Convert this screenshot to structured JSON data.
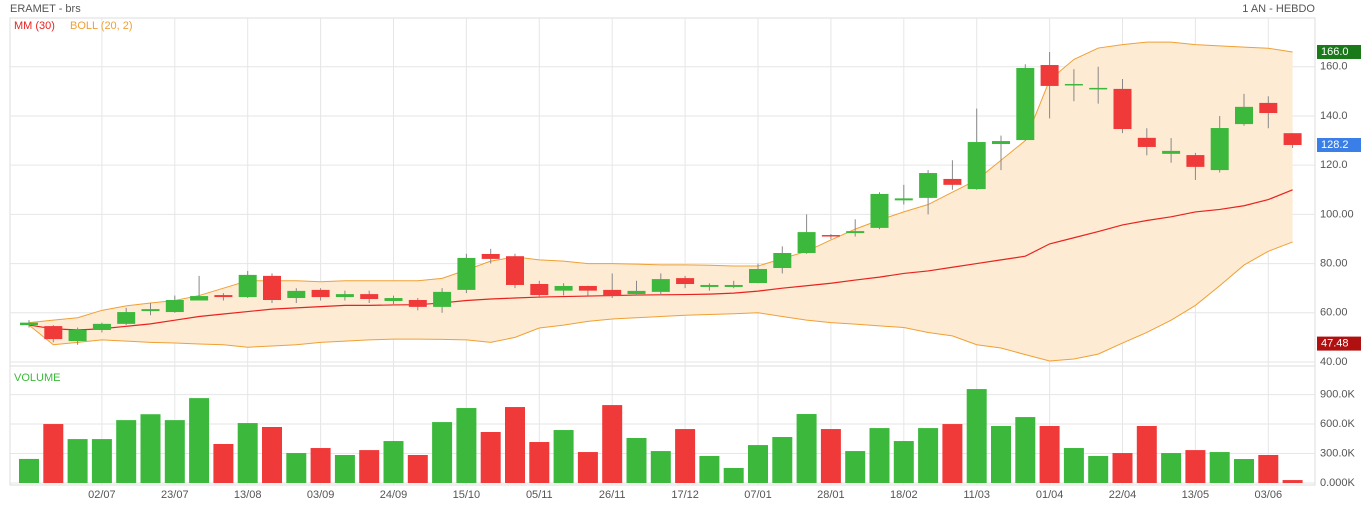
{
  "header": {
    "title": "ERAMET - brs",
    "period": "1 AN - HEBDO"
  },
  "chart_data": [
    {
      "type": "candlestick",
      "categories": [
        null,
        null,
        null,
        "02/07",
        null,
        null,
        "23/07",
        null,
        null,
        "13/08",
        null,
        null,
        "03/09",
        null,
        null,
        "24/09",
        null,
        null,
        "15/10",
        null,
        null,
        "05/11",
        null,
        null,
        "26/11",
        null,
        null,
        "17/12",
        null,
        null,
        "07/01",
        null,
        null,
        "28/01",
        null,
        null,
        "18/02",
        null,
        null,
        "11/03",
        null,
        null,
        "01/04",
        null,
        null,
        "22/04",
        null,
        null,
        "13/05",
        null,
        null,
        "03/06",
        null
      ],
      "open": [
        55,
        54.6,
        48.5,
        53,
        55.5,
        60.7,
        60.3,
        65,
        67.2,
        66.4,
        75,
        66,
        69.3,
        66.4,
        67.6,
        64.8,
        65.2,
        62.4,
        69.3,
        83.9,
        83,
        71.7,
        69,
        70.9,
        69.3,
        67.6,
        68.5,
        74.1,
        70.5,
        70.5,
        72.1,
        78.2,
        84.3,
        91.6,
        92.4,
        94.5,
        105.7,
        106.7,
        114.4,
        110.3,
        128.6,
        130.2,
        160.7,
        152.6,
        151,
        151,
        131.1,
        124.6,
        124.1,
        118,
        136.7,
        145.3,
        133
      ],
      "high": [
        57,
        55,
        54,
        56,
        62,
        64,
        67,
        75,
        68,
        77,
        76,
        70,
        70,
        69,
        69,
        67,
        66,
        70,
        84,
        86,
        84,
        73,
        72,
        71,
        76,
        73,
        76,
        75,
        72,
        73,
        80,
        87,
        100,
        92,
        98,
        109,
        112,
        118,
        122,
        143,
        132,
        161,
        166,
        159,
        160,
        155,
        135,
        131,
        125,
        140,
        149,
        148,
        133
      ],
      "low": [
        54,
        48,
        47,
        52,
        55,
        59,
        60,
        65,
        65,
        66,
        64,
        64,
        65,
        65,
        64,
        63,
        61,
        60,
        68,
        80,
        70,
        66,
        67,
        67,
        66,
        67,
        67,
        70,
        69,
        70,
        72,
        76,
        84,
        90,
        91,
        94,
        104,
        100,
        110,
        110,
        118,
        130,
        139,
        146,
        145,
        133,
        124,
        121,
        114,
        117,
        136,
        135,
        127
      ],
      "close": [
        56,
        49.3,
        53,
        55.5,
        60.3,
        61.5,
        65.2,
        66.8,
        66.4,
        75.4,
        65.2,
        68.9,
        66.4,
        67.6,
        65.6,
        66,
        62.4,
        68.5,
        82.3,
        81.9,
        71.3,
        67.2,
        70.9,
        69,
        66.8,
        68.9,
        73.7,
        71.7,
        71.3,
        71.3,
        77.8,
        84.3,
        92.8,
        91.2,
        93.2,
        108.3,
        106.5,
        116.8,
        112,
        129.4,
        129.8,
        159.5,
        152.2,
        153,
        151.4,
        134.7,
        127.4,
        125.8,
        119.3,
        135.1,
        143.7,
        141.2,
        128.2
      ],
      "up_color": "#3cb93c",
      "down_color": "#f03a3a",
      "lines": [
        {
          "name": "MM (30)",
          "color": "#e8231f",
          "values": [
            55,
            53.5,
            53,
            53.5,
            54.5,
            55.5,
            57,
            58.5,
            59.5,
            60.5,
            61.5,
            62,
            62.5,
            63,
            63,
            63.2,
            63.3,
            64,
            65,
            65.6,
            66,
            66.4,
            66.6,
            66.8,
            67,
            67.2,
            67.3,
            67.4,
            67.6,
            68,
            68.8,
            70,
            71,
            72,
            73.3,
            74.5,
            76,
            77,
            78.5,
            80,
            81.5,
            83,
            88,
            90.5,
            93,
            95.7,
            97.5,
            99,
            101,
            102,
            103.5,
            106,
            110
          ]
        }
      ],
      "band": {
        "name": "BOLL (20, 2)",
        "color": "#f0a035",
        "fill": "#fdebd3",
        "upper": [
          56,
          57,
          58,
          61,
          62.8,
          64,
          65,
          67,
          70,
          73,
          73,
          73,
          72.6,
          73,
          73,
          73,
          73,
          74,
          77.4,
          81,
          82.7,
          81.5,
          81,
          80,
          80,
          79.8,
          79.5,
          79.5,
          79.3,
          79,
          79,
          82,
          85,
          89.6,
          94,
          97.7,
          101,
          104,
          109,
          114,
          122,
          130,
          154.6,
          163,
          167.6,
          169,
          170,
          170,
          169,
          168.5,
          168,
          167.5,
          166.0
        ],
        "lower": [
          55,
          47,
          48,
          49,
          48.5,
          48,
          47.7,
          47.3,
          47,
          46,
          46.5,
          47,
          48,
          48.5,
          49,
          49.3,
          49.3,
          49.2,
          49,
          48,
          50,
          53.8,
          55,
          56.5,
          57.5,
          58,
          58.5,
          59,
          59.3,
          59.6,
          60,
          58.5,
          57,
          56,
          55.4,
          54.7,
          54,
          52,
          50.6,
          47,
          45.7,
          43,
          40.4,
          41.2,
          43.2,
          47.7,
          52,
          57,
          63,
          71,
          79.4,
          85,
          88.8
        ]
      },
      "markers": [
        {
          "value": 166.0,
          "label": "166.0",
          "color": "#1a7a1a"
        },
        {
          "value": 128.2,
          "label": "128.2",
          "color": "#3a7ee8"
        },
        {
          "value": 47.48,
          "label": "47.48",
          "color": "#b01010"
        }
      ],
      "ylim": [
        40,
        179
      ],
      "yticks": [
        {
          "value": 40,
          "label": "40.00"
        },
        {
          "value": 60,
          "label": "60.00"
        },
        {
          "value": 80,
          "label": "80.00"
        },
        {
          "value": 100,
          "label": "100.00"
        },
        {
          "value": 120,
          "label": "120.0"
        },
        {
          "value": 140,
          "label": "140.0"
        },
        {
          "value": 160,
          "label": "160.0"
        }
      ],
      "grid": true
    },
    {
      "type": "bar",
      "title": "VOLUME",
      "values": [
        245000,
        600000,
        447000,
        447000,
        640000,
        700000,
        640000,
        864000,
        397000,
        610000,
        570000,
        305000,
        356000,
        285000,
        335000,
        427000,
        285000,
        620000,
        763000,
        519000,
        773000,
        417000,
        539000,
        315000,
        793000,
        458000,
        325000,
        549000,
        275000,
        153000,
        386000,
        468000,
        702000,
        549000,
        325000,
        559000,
        427000,
        559000,
        600000,
        956000,
        580000,
        671000,
        580000,
        356000,
        275000,
        305000,
        580000,
        305000,
        335000,
        315000,
        244000,
        285000,
        30000
      ],
      "ylim": [
        0,
        1150000
      ],
      "yticks": [
        {
          "value": 0,
          "label": "0.000K"
        },
        {
          "value": 300000,
          "label": "300.0K"
        },
        {
          "value": 600000,
          "label": "600.0K"
        },
        {
          "value": 900000,
          "label": "900.0K"
        }
      ],
      "grid": true
    }
  ]
}
